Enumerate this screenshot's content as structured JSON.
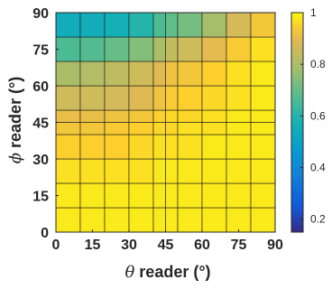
{
  "chart_data": {
    "type": "heatmap",
    "xlabel_symbol": "θ",
    "xlabel_text": " reader (°)",
    "ylabel_symbol": "ϕ",
    "ylabel_text": " reader (°)",
    "x_tick_labels": [
      "0",
      "15",
      "30",
      "45",
      "60",
      "75",
      "90"
    ],
    "y_tick_labels": [
      "0",
      "15",
      "30",
      "45",
      "60",
      "75",
      "90"
    ],
    "x_ticks": [
      0,
      15,
      30,
      45,
      60,
      75,
      90
    ],
    "y_ticks": [
      0,
      15,
      30,
      45,
      60,
      75,
      90
    ],
    "xlim": [
      0,
      90
    ],
    "ylim": [
      0,
      90
    ],
    "x_edges": [
      0,
      10,
      20,
      30,
      40,
      45,
      50,
      60,
      70,
      80,
      90
    ],
    "y_edges": [
      0,
      10,
      20,
      30,
      40,
      45,
      50,
      60,
      70,
      80,
      90
    ],
    "values": [
      [
        0.98,
        0.98,
        0.98,
        0.98,
        0.98,
        0.98,
        0.98,
        0.98,
        0.98,
        0.98
      ],
      [
        0.98,
        0.98,
        0.98,
        0.98,
        0.98,
        0.98,
        0.98,
        0.98,
        0.98,
        0.98
      ],
      [
        0.97,
        0.97,
        0.97,
        0.97,
        0.98,
        0.98,
        0.98,
        0.98,
        0.98,
        0.98
      ],
      [
        0.95,
        0.95,
        0.95,
        0.96,
        0.97,
        0.97,
        0.97,
        0.98,
        0.98,
        0.98
      ],
      [
        0.93,
        0.93,
        0.94,
        0.95,
        0.96,
        0.96,
        0.97,
        0.97,
        0.98,
        0.98
      ],
      [
        0.91,
        0.91,
        0.92,
        0.93,
        0.95,
        0.96,
        0.96,
        0.97,
        0.98,
        0.98
      ],
      [
        0.86,
        0.86,
        0.87,
        0.89,
        0.92,
        0.94,
        0.95,
        0.96,
        0.97,
        0.98
      ],
      [
        0.8,
        0.81,
        0.83,
        0.86,
        0.89,
        0.92,
        0.93,
        0.95,
        0.97,
        0.98
      ],
      [
        0.66,
        0.67,
        0.7,
        0.74,
        0.8,
        0.84,
        0.86,
        0.9,
        0.94,
        0.97
      ],
      [
        0.55,
        0.55,
        0.57,
        0.6,
        0.66,
        0.69,
        0.72,
        0.79,
        0.87,
        0.93
      ]
    ],
    "colorbar": {
      "min": 0.15,
      "max": 1,
      "tick_values": [
        0.2,
        0.4,
        0.6,
        0.8,
        1
      ],
      "tick_labels": [
        "0.2",
        "0.4",
        "0.6",
        "0.8",
        "1"
      ]
    },
    "colormap": "parula",
    "grid": true
  }
}
